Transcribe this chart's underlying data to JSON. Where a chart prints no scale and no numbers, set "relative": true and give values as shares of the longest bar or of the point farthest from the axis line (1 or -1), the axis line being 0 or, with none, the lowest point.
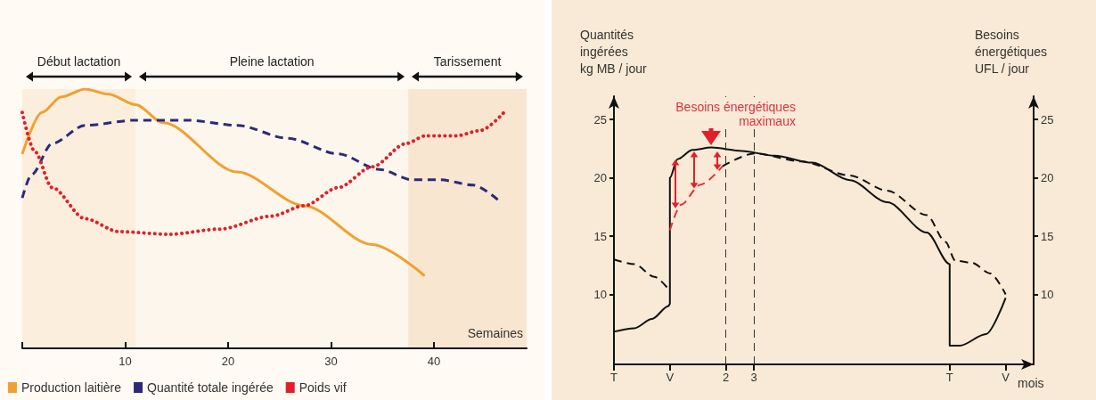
{
  "chart_data": [
    {
      "type": "line",
      "xlabel": "Semaines",
      "relative": true,
      "xlim": [
        0,
        49
      ],
      "xticks": [
        {
          "value": 0,
          "label": null
        },
        10,
        20,
        30,
        40
      ],
      "legend": "bottom left",
      "marker": "none",
      "bands": [
        {
          "axis": "x",
          "from": 0,
          "to": 11,
          "label": "Début lactation",
          "color": "#fbeedd"
        },
        {
          "axis": "x",
          "from": 11,
          "to": 37.5,
          "label": "Pleine lactation",
          "color": "#fdf6ec"
        },
        {
          "axis": "x",
          "from": 37.5,
          "to": 49,
          "label": "Tarissement",
          "color": "#f8e6d0"
        }
      ],
      "series": [
        {
          "name": "Production laitière",
          "color": "#f0a030",
          "line_style": "solid",
          "x": [
            0,
            1.9,
            3.8,
            6.1,
            8.4,
            11,
            13.7,
            20.9,
            27.4,
            34,
            39.1
          ],
          "values": [
            0.75,
            0.91,
            0.97,
            1,
            0.98,
            0.94,
            0.87,
            0.68,
            0.55,
            0.4,
            0.28
          ]
        },
        {
          "name": "Quantité totale ingérée",
          "color": "#2b2a7a",
          "line_style": "dashed",
          "x": [
            0,
            0.9,
            2.9,
            6.1,
            11,
            16,
            20.9,
            25.8,
            30.7,
            34.7,
            37.9,
            40.6,
            43.8,
            46.3
          ],
          "values": [
            0.58,
            0.67,
            0.79,
            0.86,
            0.88,
            0.88,
            0.86,
            0.81,
            0.75,
            0.69,
            0.65,
            0.65,
            0.63,
            0.57
          ]
        },
        {
          "name": "Poids vif",
          "color": "#e0202a",
          "line_style": "dotted",
          "x": [
            0,
            1.2,
            2.9,
            6.1,
            9.4,
            14.3,
            19.2,
            24.2,
            27.4,
            30.7,
            34,
            37.3,
            39.2,
            42.2,
            44.5,
            46.8
          ],
          "values": [
            0.91,
            0.76,
            0.62,
            0.5,
            0.45,
            0.44,
            0.46,
            0.51,
            0.55,
            0.62,
            0.7,
            0.79,
            0.82,
            0.82,
            0.84,
            0.91
          ]
        }
      ]
    },
    {
      "type": "line",
      "ylabel": "Quantités\ningérées\nkg MB / jour",
      "y2label": "Besoins\nénergétiques\nUFL / jour",
      "xlabel": "mois",
      "xlim": [
        -2,
        13
      ],
      "xticks": [
        {
          "value": -2,
          "label": "T"
        },
        {
          "value": 0,
          "label": "V"
        },
        2,
        3,
        {
          "value": 10,
          "label": "T"
        },
        {
          "value": 12,
          "label": "V"
        }
      ],
      "ylim": [
        4,
        27
      ],
      "yticks": [
        10,
        15,
        20,
        25
      ],
      "y2lim": [
        4,
        27
      ],
      "y2ticks": [
        10,
        15,
        20,
        25
      ],
      "marker": "none",
      "ref_lines": [
        {
          "axis": "x",
          "value": 2,
          "color": "#333333",
          "line_style": "dashed"
        },
        {
          "axis": "x",
          "value": 3,
          "color": "#333333",
          "line_style": "dashed"
        }
      ],
      "annotations": [
        {
          "text": "Besoins énergétiques\nmaximaux",
          "x": 1.48,
          "y": 22.6
        }
      ],
      "series": [
        {
          "color": "#111111",
          "line_style": "solid",
          "x": [
            -2,
            -1.27,
            -0.64,
            -0.05,
            0,
            0,
            0.27,
            0.81,
            1.48,
            2.58,
            3.74,
            5.09,
            6.43,
            7.77,
            9.18,
            10,
            10,
            10.36,
            11.3,
            12
          ],
          "values": [
            6.8,
            7.1,
            7.9,
            9,
            9.2,
            20,
            21.6,
            22.4,
            22.6,
            22.3,
            21.9,
            21.3,
            19.8,
            17.9,
            15.3,
            12.6,
            5.6,
            5.6,
            6.6,
            9.7
          ]
        },
        {
          "color": "#111111",
          "line_style": "dashed",
          "x": [
            -2,
            -1.27,
            -0.55,
            0,
            0.74,
            1.88,
            3.03,
            4.71,
            6.43,
            7.77,
            9.18,
            9.85,
            10.2,
            10.8,
            11.45,
            12
          ],
          "values": [
            13,
            12.6,
            11.5,
            10.3,
            null,
            21,
            22.1,
            21.4,
            20.2,
            18.9,
            16.8,
            14.5,
            12.9,
            12.7,
            11.8,
            10
          ]
        },
        {
          "color": "#e0303a",
          "line_style": "dashed",
          "x": [
            0,
            0.4,
            1.08,
            1.88
          ],
          "values": [
            15.5,
            17.7,
            19.4,
            21
          ]
        }
      ]
    }
  ]
}
